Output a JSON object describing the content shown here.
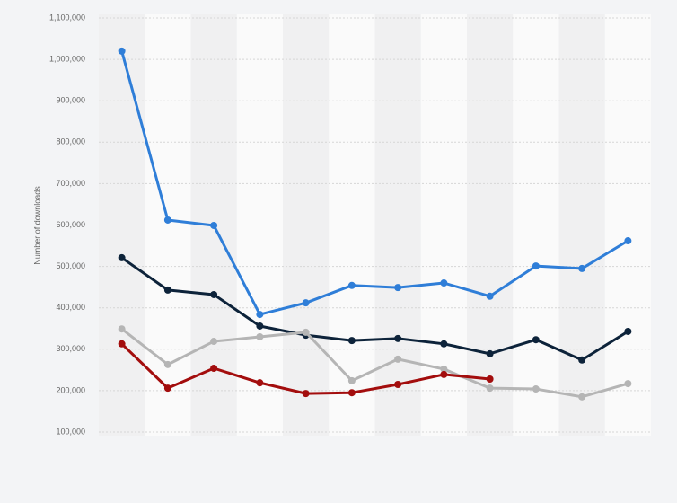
{
  "chart_data": {
    "type": "line",
    "y_label": "Number of downloads",
    "categories": [
      null,
      null,
      null,
      null,
      null,
      null,
      null,
      null,
      null,
      null,
      null,
      null
    ],
    "series": [
      {
        "color": "#2f7ed8",
        "values": [
          1020000,
          612000,
          599000,
          384000,
          412000,
          454000,
          449000,
          460000,
          428000,
          501000,
          495000,
          562000
        ]
      },
      {
        "color": "#0d233a",
        "values": [
          521000,
          443000,
          432000,
          356000,
          334000,
          321000,
          326000,
          313000,
          289000,
          323000,
          274000,
          343000
        ]
      },
      {
        "color": "#b5b5b5",
        "values": [
          349000,
          263000,
          319000,
          330000,
          341000,
          224000,
          276000,
          252000,
          206000,
          204000,
          185000,
          217000
        ]
      },
      {
        "color": "#a30d0d",
        "values": [
          313000,
          206000,
          254000,
          219000,
          193000,
          195000,
          215000,
          239000,
          228000,
          null,
          null,
          null
        ]
      }
    ],
    "ylim": [
      100000,
      1100000
    ],
    "yticks": [
      {
        "value": 100000,
        "label": "100,000"
      },
      {
        "value": 200000,
        "label": "200,000"
      },
      {
        "value": 300000,
        "label": "300,000"
      },
      {
        "value": 400000,
        "label": "400,000"
      },
      {
        "value": 500000,
        "label": "500,000"
      },
      {
        "value": 600000,
        "label": "600,000"
      },
      {
        "value": 700000,
        "label": "700,000"
      },
      {
        "value": 800000,
        "label": "800,000"
      },
      {
        "value": 900000,
        "label": "900,000"
      },
      {
        "value": 1000000,
        "label": "1,000,000"
      },
      {
        "value": 1100000,
        "label": "1,100,000"
      }
    ],
    "grid": true
  }
}
